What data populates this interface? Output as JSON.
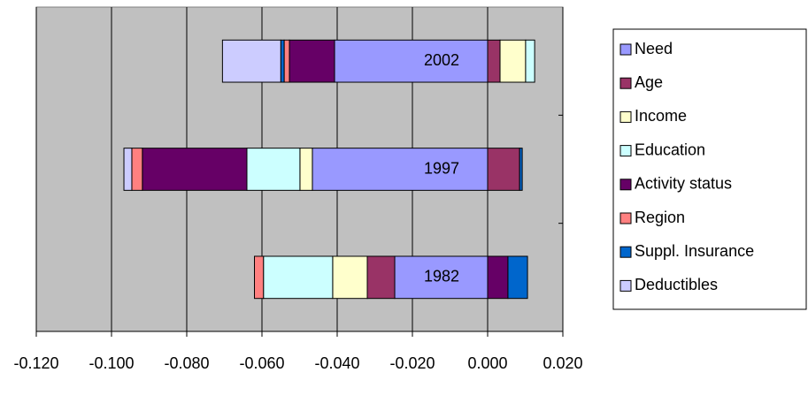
{
  "chart_data": {
    "type": "stacked-barh",
    "categories": [
      "1982",
      "1997",
      "2002"
    ],
    "series": [
      {
        "name": "Need",
        "color": "#9999ff",
        "values": [
          -0.0247,
          -0.0466,
          -0.0407
        ]
      },
      {
        "name": "Age",
        "color": "#993366",
        "values": [
          -0.0073,
          0.0085,
          0.0033
        ]
      },
      {
        "name": "Income",
        "color": "#ffffcc",
        "values": [
          -0.0092,
          -0.0033,
          0.0068
        ]
      },
      {
        "name": "Education",
        "color": "#ccffff",
        "values": [
          -0.0184,
          -0.0141,
          0.0024
        ]
      },
      {
        "name": "Activity status",
        "color": "#660066",
        "values": [
          0.0054,
          -0.0278,
          -0.012
        ]
      },
      {
        "name": "Region",
        "color": "#ff8080",
        "values": [
          -0.0024,
          -0.0028,
          -0.0014
        ]
      },
      {
        "name": "Suppl. Insurance",
        "color": "#0066cc",
        "values": [
          0.0052,
          0.0007,
          -0.0009
        ]
      },
      {
        "name": "Deductibles",
        "color": "#ccccff",
        "values": [
          0,
          -0.0021,
          -0.0155
        ]
      }
    ],
    "xlim": [
      -0.12,
      0.02
    ],
    "xticks": [
      {
        "value": -0.12,
        "label": "-0.120"
      },
      {
        "value": -0.1,
        "label": "-0.100"
      },
      {
        "value": -0.08,
        "label": "-0.080"
      },
      {
        "value": -0.06,
        "label": "-0.060"
      },
      {
        "value": -0.04,
        "label": "-0.040"
      },
      {
        "value": -0.02,
        "label": "-0.020"
      },
      {
        "value": 0,
        "label": "0.000"
      },
      {
        "value": 0.02,
        "label": "0.020"
      }
    ],
    "grid": true,
    "plot_background": "#c0c0c0",
    "legend": "right"
  }
}
